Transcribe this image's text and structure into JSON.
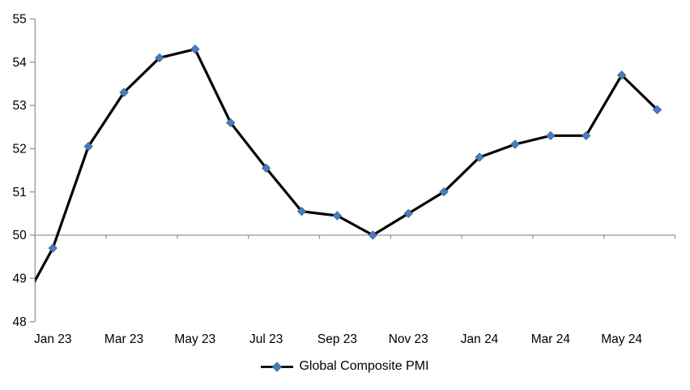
{
  "chart_data": {
    "type": "line",
    "title": "",
    "xlabel": "",
    "ylabel": "",
    "series_name": "Global Composite PMI",
    "categories": [
      "Dec 22",
      "Jan 23",
      "Feb 23",
      "Mar 23",
      "Apr 23",
      "May 23",
      "Jun 23",
      "Jul 23",
      "Aug 23",
      "Sep 23",
      "Oct 23",
      "Nov 23",
      "Dec 23",
      "Jan 24",
      "Feb 24",
      "Mar 24",
      "Apr 24",
      "May 24",
      "Jun 24"
    ],
    "values": [
      48.2,
      49.7,
      52.05,
      53.3,
      54.1,
      54.3,
      52.6,
      51.55,
      50.55,
      50.45,
      50.0,
      50.5,
      51.0,
      51.8,
      52.1,
      52.3,
      52.3,
      53.7,
      52.9
    ],
    "first_category_clipped_outside_left_axis": true,
    "x_tick_labels": [
      "Jan 23",
      "Mar 23",
      "May 23",
      "Jul 23",
      "Sep 23",
      "Nov 23",
      "Jan 24",
      "Mar 24",
      "May 24"
    ],
    "y_tick_labels": [
      "48",
      "49",
      "50",
      "51",
      "52",
      "53",
      "54",
      "55"
    ],
    "ylim": [
      48,
      55
    ],
    "y_tick_step": 1,
    "axis_crosses_at": 50,
    "grid": "off",
    "legend_position": "bottom-center",
    "colors": {
      "line": "#000000",
      "marker_fill": "#4A7EBB",
      "marker_edge": "#3C6BA5",
      "axis": "#969696",
      "text": "#000000",
      "background": "#FFFFFF"
    }
  }
}
